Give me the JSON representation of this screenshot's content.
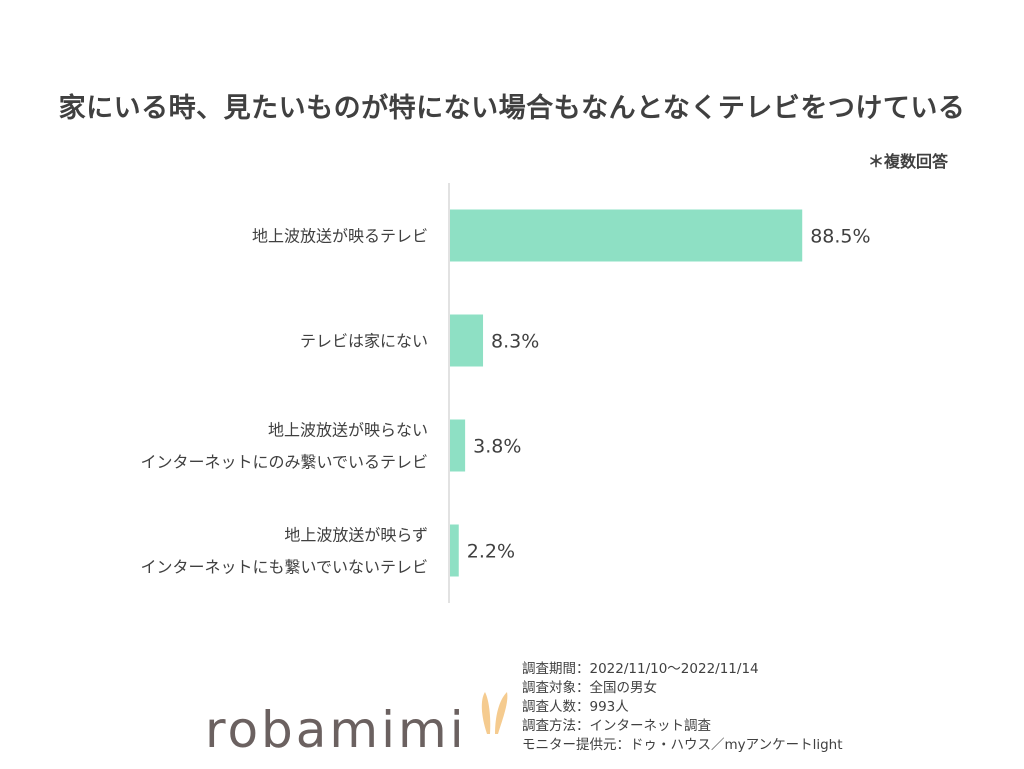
{
  "title": "家にいる時、見たいものが特にない場合もなんとなくテレビをつけている",
  "note": "＊複数回答",
  "chart_data": {
    "type": "bar",
    "orientation": "horizontal",
    "categories": [
      [
        "地上波放送が映るテレビ"
      ],
      [
        "テレビは家にない"
      ],
      [
        "地上波放送が映らない",
        "インターネットにのみ繋いでいるテレビ"
      ],
      [
        "地上波放送が映らず",
        "インターネットにも繋いでいないテレビ"
      ]
    ],
    "values": [
      88.5,
      8.3,
      3.8,
      2.2
    ],
    "value_labels": [
      "88.5%",
      "8.3%",
      "3.8%",
      "2.2%"
    ],
    "xlim": [
      0,
      100
    ],
    "bar_color": "#8ee0c4",
    "axis_color": "#d9d9d9",
    "grid": false,
    "legend": "none"
  },
  "logo": {
    "text": "robamimi",
    "ear_color": "#f5cb8f"
  },
  "survey": {
    "lines": [
      "調査期間：2022/11/10～2022/11/14",
      "調査対象：全国の男女",
      "調査人数：993人",
      "調査方法：インターネット調査",
      "モニター提供元：ドゥ・ハウス／myアンケートlight"
    ]
  }
}
